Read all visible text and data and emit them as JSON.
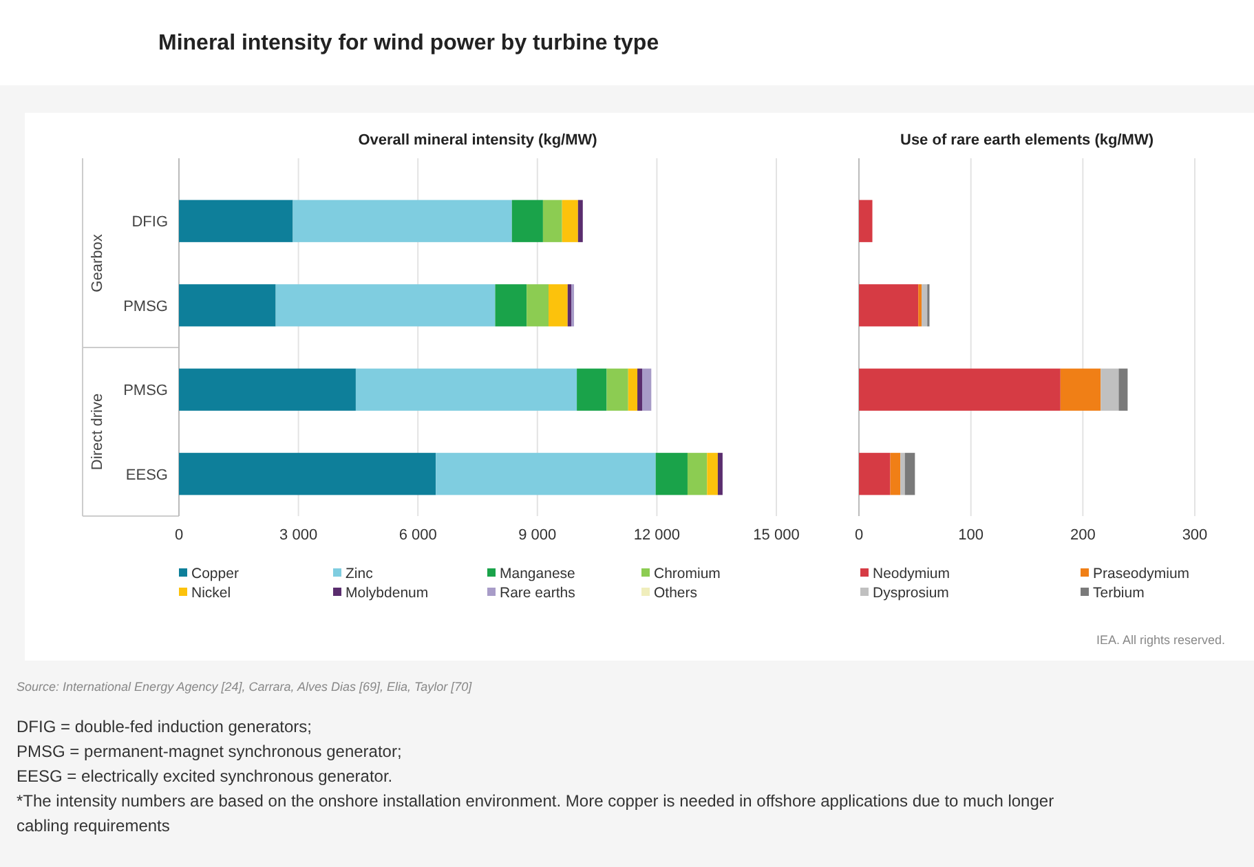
{
  "chart_data": [
    {
      "type": "bar",
      "orientation": "horizontal",
      "stacked": true,
      "title": "Mineral intensity for wind power by turbine type",
      "subtitle": "Overall mineral intensity (kg/MW)",
      "categories": [
        "DFIG",
        "PMSG",
        "PMSG",
        "EESG"
      ],
      "series": [
        {
          "name": "Copper",
          "color": "#0e7f9a",
          "values": [
            2860,
            2430,
            4440,
            6450
          ]
        },
        {
          "name": "Zinc",
          "color": "#7fcde0",
          "values": [
            5500,
            5510,
            5550,
            5520
          ]
        },
        {
          "name": "Manganese",
          "color": "#1aa34a",
          "values": [
            780,
            790,
            750,
            800
          ]
        },
        {
          "name": "Chromium",
          "color": "#8ccc52",
          "values": [
            480,
            550,
            540,
            490
          ]
        },
        {
          "name": "Nickel",
          "color": "#fcc20c",
          "values": [
            400,
            480,
            230,
            270
          ]
        },
        {
          "name": "Molybdenum",
          "color": "#5a2d6e",
          "values": [
            120,
            90,
            120,
            120
          ]
        },
        {
          "name": "Rare earths",
          "color": "#a89cc8",
          "values": [
            null,
            70,
            230,
            null
          ]
        },
        {
          "name": "Others",
          "color": "#f0eebc",
          "values": [
            null,
            null,
            null,
            null
          ]
        }
      ],
      "xlim": [
        0,
        15000
      ],
      "xticks": [
        0,
        {
          "value": 3000,
          "label": "3 000"
        },
        {
          "value": 6000,
          "label": "6 000"
        },
        {
          "value": 9000,
          "label": "9 000"
        },
        {
          "value": 12000,
          "label": "12 000"
        },
        {
          "value": 15000,
          "label": "15 000"
        }
      ],
      "grid": "x",
      "legend": "bottom",
      "annotations": [
        "Gearbox",
        "Direct drive",
        "Source: International Energy Agency [24], Carrara, Alves Dias [69], Elia, Taylor [70]",
        "DFIG = double-fed induction generators;",
        "PMSG = permanent-magnet synchronous generator;",
        "EESG = electrically excited synchronous generator.",
        "*The intensity numbers are based on the onshore installation environment. More copper is needed in offshore applications due to much longer cabling requirements"
      ]
    },
    {
      "type": "bar",
      "orientation": "horizontal",
      "stacked": true,
      "title": "Use of rare earth elements (kg/MW)",
      "categories": [
        null,
        null,
        null,
        null
      ],
      "series": [
        {
          "name": "Neodymium",
          "color": "#d63b44",
          "values": [
            12,
            53,
            180,
            28
          ]
        },
        {
          "name": "Praseodymium",
          "color": "#f07f16",
          "values": [
            null,
            3,
            36,
            9
          ]
        },
        {
          "name": "Dysprosium",
          "color": "#c0c0c0",
          "values": [
            null,
            5,
            16,
            4
          ]
        },
        {
          "name": "Terbium",
          "color": "#7a7a7a",
          "values": [
            null,
            2,
            8,
            9
          ]
        }
      ],
      "xlim": [
        0,
        300
      ],
      "xticks": [
        0,
        100,
        200,
        300
      ],
      "grid": "x",
      "legend": "bottom",
      "annotations": [
        "IEA. All rights reserved."
      ]
    }
  ]
}
